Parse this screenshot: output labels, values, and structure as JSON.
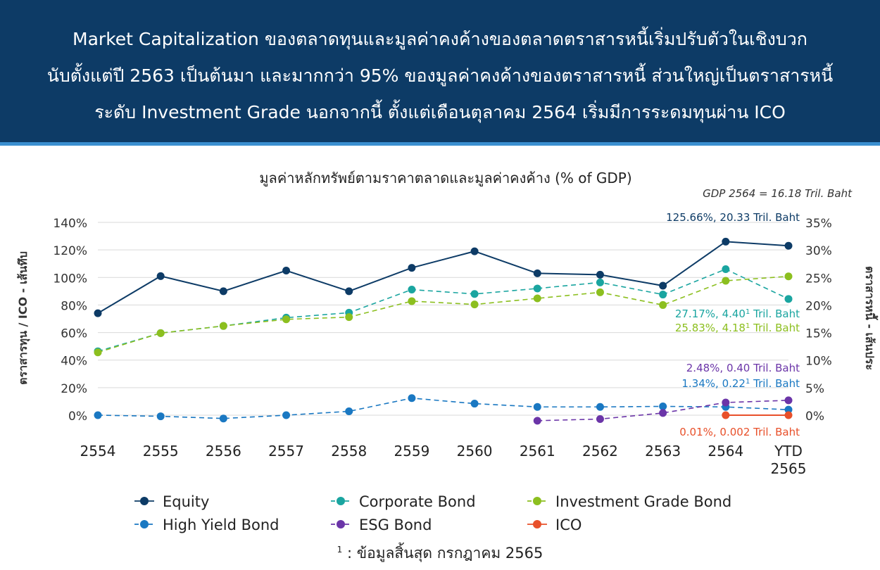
{
  "header": {
    "lines": [
      "Market Capitalization ของตลาดทุนและมูลค่าคงค้างของตลาดตราสารหนี้เริ่มปรับตัวในเชิงบวก",
      "นับตั้งแต่ปี 2563 เป็นต้นมา และมากกว่า 95% ของมูลค่าคงค้างของตราสารหนี้ ส่วนใหญ่เป็นตราสารหนี้",
      "ระดับ Investment Grade นอกจากนี้ ตั้งแต่เดือนตุลาคม 2564 เริ่มมีการระดมทุนผ่าน ICO"
    ]
  },
  "footnote": {
    "marker": "1",
    "text": ": ข้อมูลสิ้นสุด กรกฎาคม 2565"
  },
  "colors": {
    "equity": "#0d3b66",
    "corporate_bond": "#1aa5a0",
    "investment_grade_bond": "#8cbf1f",
    "high_yield_bond": "#1a78c2",
    "esg_bond": "#6b35a8",
    "ico": "#e8502a",
    "grid": "#d9d9d9",
    "header_bg": "#0d3b66"
  },
  "chart_data": {
    "type": "line",
    "title": "มูลค่าหลักทรัพย์ตามราคาตลาดและมูลค่าคงค้าง (% of GDP)",
    "subtitle": "GDP 2564 = 16.18 Tril. Baht",
    "ylabel_left": "ตราสารทุน / ICO - เส้นทึบ",
    "ylabel_right": "ตราสารหนี้ - เส้นประ",
    "categories": [
      "2554",
      "2555",
      "2556",
      "2557",
      "2558",
      "2559",
      "2560",
      "2561",
      "2562",
      "2563",
      "2564",
      "YTD 2565"
    ],
    "ylim_left": [
      0,
      140
    ],
    "ylim_right": [
      0,
      35
    ],
    "yticks_left": [
      "0%",
      "20%",
      "40%",
      "60%",
      "80%",
      "100%",
      "120%",
      "140%"
    ],
    "yticks_right": [
      "0%",
      "5%",
      "10%",
      "15%",
      "20%",
      "25%",
      "30%",
      "35%"
    ],
    "grid": true,
    "legend_position": "bottom",
    "series": [
      {
        "name": "Equity",
        "key": "equity",
        "axis": "left",
        "dashed": false,
        "values": [
          74,
          101,
          90,
          105,
          90,
          107,
          119,
          103,
          102,
          94,
          126,
          123
        ]
      },
      {
        "name": "Corporate Bond",
        "key": "corporate_bond",
        "axis": "right",
        "dashed": true,
        "values": [
          11.6,
          14.9,
          16.2,
          17.7,
          18.6,
          22.8,
          22.0,
          23.0,
          24.1,
          21.9,
          26.5,
          21.1
        ]
      },
      {
        "name": "Investment Grade Bond",
        "key": "investment_grade_bond",
        "axis": "right",
        "dashed": true,
        "values": [
          11.4,
          14.9,
          16.2,
          17.4,
          17.8,
          20.7,
          20.1,
          21.2,
          22.3,
          20.0,
          24.4,
          25.2
        ]
      },
      {
        "name": "High Yield Bond",
        "key": "high_yield_bond",
        "axis": "right",
        "dashed": true,
        "values": [
          0.0,
          -0.2,
          -0.6,
          0.0,
          0.7,
          3.1,
          2.1,
          1.5,
          1.5,
          1.6,
          1.5,
          1.0
        ]
      },
      {
        "name": "ESG Bond",
        "key": "esg_bond",
        "axis": "right",
        "dashed": true,
        "values": [
          null,
          null,
          null,
          null,
          null,
          null,
          null,
          -1.0,
          -0.7,
          0.4,
          2.3,
          2.7
        ]
      },
      {
        "name": "ICO",
        "key": "ico",
        "axis": "left",
        "dashed": false,
        "values": [
          null,
          null,
          null,
          null,
          null,
          null,
          null,
          null,
          null,
          null,
          0.0,
          0.0
        ]
      }
    ],
    "annotations": [
      {
        "key": "equity",
        "text": "125.66%, 20.33 Tril. Baht",
        "sup": ""
      },
      {
        "key": "corporate_bond",
        "text": "27.17%, 4.40",
        "sup": "1",
        "after": " Tril. Baht"
      },
      {
        "key": "investment_grade_bond",
        "text": "25.83%, 4.18",
        "sup": "1",
        "after": " Tril. Baht"
      },
      {
        "key": "esg_bond",
        "text": "2.48%, 0.40  Tril. Baht",
        "sup": ""
      },
      {
        "key": "high_yield_bond",
        "text": "1.34%, 0.22",
        "sup": "1",
        "after": " Tril. Baht"
      },
      {
        "key": "ico",
        "text": "0.01%, 0.002 Tril. Baht",
        "sup": ""
      }
    ]
  }
}
